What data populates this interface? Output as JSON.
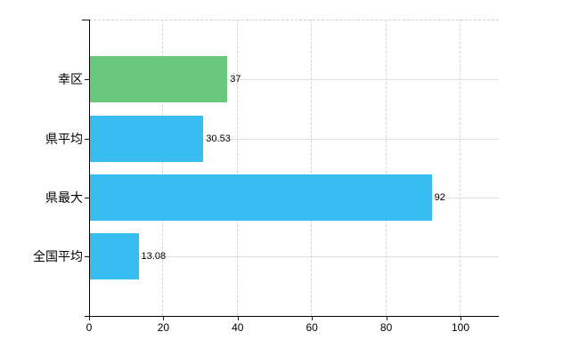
{
  "chart_data": {
    "type": "bar",
    "orientation": "horizontal",
    "title": "",
    "xlabel": "",
    "ylabel": "",
    "categories": [
      "幸区",
      "県平均",
      "県最大",
      "全国平均"
    ],
    "values": [
      37,
      30.53,
      92,
      13.08
    ],
    "value_labels": [
      "37",
      "30.53",
      "92",
      "13.08"
    ],
    "bar_colors": [
      "#69c87d",
      "#38bdf0",
      "#38bdf0",
      "#38bdf0"
    ],
    "x_ticks": [
      0,
      20,
      40,
      60,
      80,
      100
    ],
    "x_tick_labels": [
      "0",
      "20",
      "40",
      "60",
      "80",
      "100"
    ],
    "xlim": [
      0,
      110
    ],
    "grid": "both",
    "legend": "none",
    "background_color": "#ffffff",
    "axis_color": "#000000",
    "gridline_color": "#d9d9d9",
    "text_color": "#000000"
  }
}
